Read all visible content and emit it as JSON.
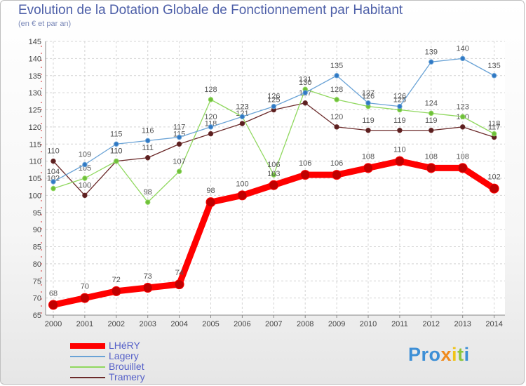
{
  "header": {
    "title": "Evolution de la Dotation Globale de Fonctionnement par Habitant",
    "subtitle": "(en € et par an)"
  },
  "legend": [
    {
      "label": "LHéRY"
    },
    {
      "label": "Lagery"
    },
    {
      "label": "Brouillet"
    },
    {
      "label": "Tramery"
    }
  ],
  "logo": {
    "p1": "Pro",
    "x": "x",
    "i": "i",
    "t": "t",
    "i2": "i"
  },
  "chart_data": {
    "type": "line",
    "title": "Evolution de la Dotation Globale de Fonctionnement par Habitant",
    "subtitle": "(en € et par an)",
    "xlabel": "",
    "ylabel": "",
    "categories": [
      "2000",
      "2001",
      "2002",
      "2003",
      "2004",
      "2005",
      "2006",
      "2007",
      "2008",
      "2009",
      "2010",
      "2011",
      "2012",
      "2013",
      "2014"
    ],
    "ylim": [
      65,
      145
    ],
    "yticks": [
      65,
      70,
      75,
      80,
      85,
      90,
      95,
      100,
      105,
      110,
      115,
      120,
      125,
      130,
      135,
      140,
      145
    ],
    "grid": true,
    "legend_position": "bottom-left",
    "series": [
      {
        "name": "LHéRY",
        "color": "#ff0000",
        "values": [
          68,
          70,
          72,
          73,
          74,
          98,
          100,
          103,
          106,
          106,
          108,
          110,
          108,
          108,
          102
        ]
      },
      {
        "name": "Lagery",
        "color": "#6aa3d6",
        "values": [
          104,
          109,
          115,
          116,
          117,
          120,
          123,
          126,
          130,
          135,
          127,
          126,
          139,
          140,
          135
        ]
      },
      {
        "name": "Brouillet",
        "color": "#90d85f",
        "values": [
          102,
          105,
          110,
          98,
          107,
          128,
          123,
          106,
          131,
          128,
          126,
          125,
          124,
          123,
          118
        ]
      },
      {
        "name": "Tramery",
        "color": "#6b2a2a",
        "values": [
          110,
          100,
          110,
          111,
          115,
          118,
          121,
          125,
          127,
          120,
          119,
          119,
          119,
          120,
          117
        ]
      }
    ]
  }
}
